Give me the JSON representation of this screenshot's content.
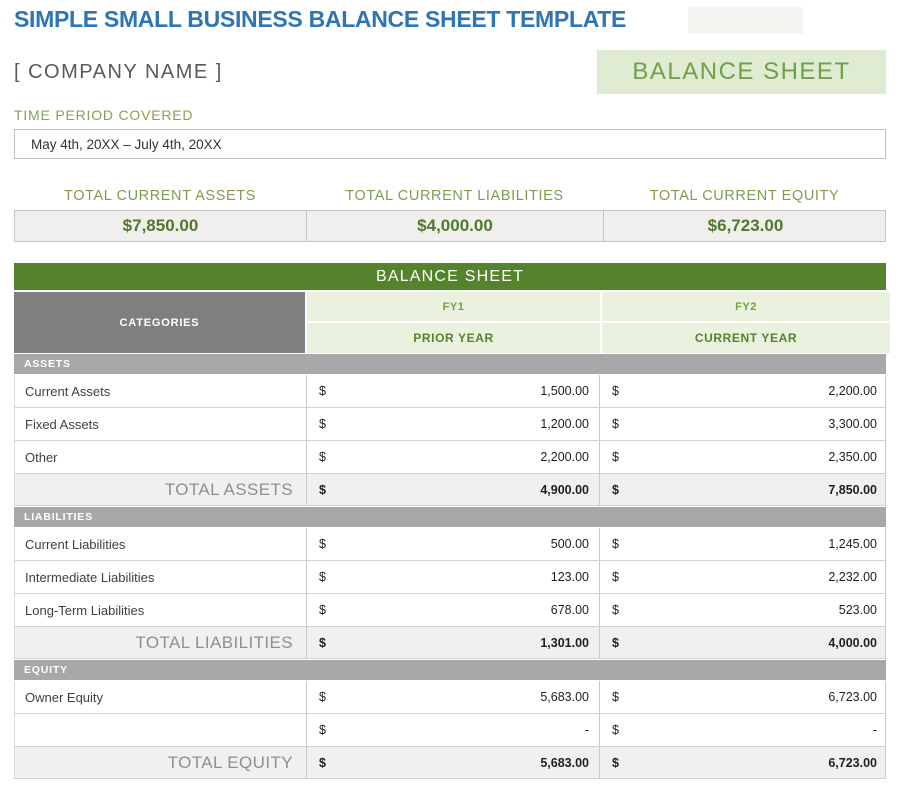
{
  "page": {
    "title": "SIMPLE SMALL BUSINESS BALANCE SHEET TEMPLATE",
    "company_name": "[ COMPANY NAME ]",
    "badge": "BALANCE SHEET",
    "time_period_label": "TIME PERIOD COVERED",
    "time_period_value": "May 4th, 20XX – July 4th, 20XX"
  },
  "summary": {
    "assets": {
      "label": "TOTAL CURRENT ASSETS",
      "value": "$7,850.00"
    },
    "liabilities": {
      "label": "TOTAL CURRENT LIABILITIES",
      "value": "$4,000.00"
    },
    "equity": {
      "label": "TOTAL CURRENT EQUITY",
      "value": "$6,723.00"
    }
  },
  "table": {
    "banner": "BALANCE SHEET",
    "categories_header": "CATEGORIES",
    "fy1": "FY1",
    "fy2": "FY2",
    "prior_year": "PRIOR YEAR",
    "current_year": "CURRENT YEAR",
    "currency": "$",
    "sections": {
      "assets": {
        "name": "ASSETS",
        "rows": [
          {
            "label": "Current Assets",
            "fy1": "1,500.00",
            "fy2": "2,200.00"
          },
          {
            "label": "Fixed Assets",
            "fy1": "1,200.00",
            "fy2": "3,300.00"
          },
          {
            "label": "Other",
            "fy1": "2,200.00",
            "fy2": "2,350.00"
          }
        ],
        "total": {
          "label": "TOTAL ASSETS",
          "fy1": "4,900.00",
          "fy2": "7,850.00"
        }
      },
      "liabilities": {
        "name": "LIABILITIES",
        "rows": [
          {
            "label": "Current Liabilities",
            "fy1": "500.00",
            "fy2": "1,245.00"
          },
          {
            "label": "Intermediate Liabilities",
            "fy1": "123.00",
            "fy2": "2,232.00"
          },
          {
            "label": "Long-Term Liabilities",
            "fy1": "678.00",
            "fy2": "523.00"
          }
        ],
        "total": {
          "label": "TOTAL LIABILITIES",
          "fy1": "1,301.00",
          "fy2": "4,000.00"
        }
      },
      "equity": {
        "name": "EQUITY",
        "rows": [
          {
            "label": "Owner Equity",
            "fy1": "5,683.00",
            "fy2": "6,723.00"
          },
          {
            "label": "",
            "fy1": "-",
            "fy2": "-"
          }
        ],
        "total": {
          "label": "TOTAL EQUITY",
          "fy1": "5,683.00",
          "fy2": "6,723.00"
        }
      }
    }
  },
  "colors": {
    "title_blue": "#2E75B6",
    "banner_green": "#55832C",
    "label_green": "#7E9E4D",
    "value_green": "#4D7A2C",
    "badge_bg": "#DFEBD2",
    "light_green_cell": "#EAF2DF",
    "categories_gray": "#7F7F7F",
    "section_gray": "#A8A8A8",
    "total_row_bg": "#F1F0EE"
  }
}
